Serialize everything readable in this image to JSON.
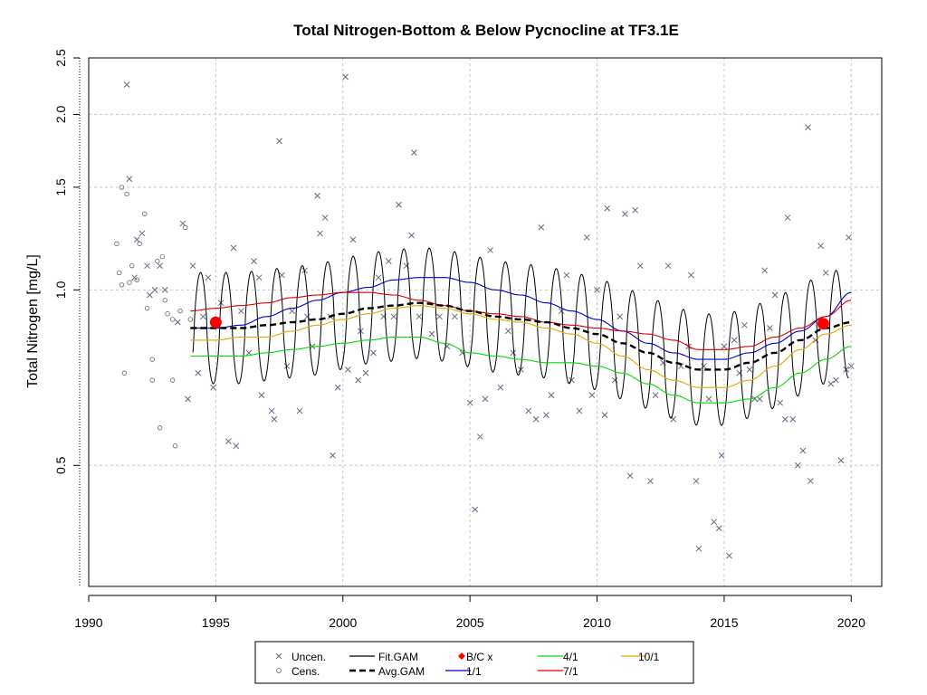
{
  "chart_data": {
    "type": "line",
    "title": "Total Nitrogen-Bottom & Below Pycnocline at TF3.1E",
    "xlabel": "",
    "ylabel": "Total Nitrogen [mg/L]",
    "y_scale": "log",
    "xlim": [
      1990,
      2021.2
    ],
    "ylim": [
      0.31,
      2.5
    ],
    "xticks": [
      1990,
      1995,
      2000,
      2005,
      2010,
      2015,
      2020
    ],
    "yticks": [
      0.5,
      1.0,
      1.5,
      2.0,
      2.5
    ],
    "ytick_labels": [
      "0.5",
      "1.0",
      "1.5",
      "2.0",
      "2.5"
    ],
    "grid": true,
    "legend_position": "bottom-center",
    "legend": [
      {
        "label": "Uncen.",
        "kind": "x-marker",
        "color": "#666688"
      },
      {
        "label": "Cens.",
        "kind": "o-marker",
        "color": "#666666"
      },
      {
        "label": "Fit.GAM",
        "kind": "line",
        "color": "#000000"
      },
      {
        "label": "Avg.GAM",
        "kind": "dashed-line",
        "color": "#000000"
      },
      {
        "label": "B/C x",
        "kind": "diamond",
        "color": "#ff0000"
      },
      {
        "label": "1/1",
        "kind": "line",
        "color": "#0000cc"
      },
      {
        "label": "4/1",
        "kind": "line",
        "color": "#00dd00"
      },
      {
        "label": "7/1",
        "kind": "line",
        "color": "#dd0000"
      },
      {
        "label": "10/1",
        "kind": "line",
        "color": "#e6a800"
      }
    ],
    "colors": {
      "uncen": "#666688",
      "cens": "#666666",
      "fit_gam": "#000000",
      "avg_gam": "#000000",
      "bc": "#ff0000",
      "d1_1": "#0000cc",
      "d4_1": "#00dd00",
      "d7_1": "#dd0000",
      "d10_1": "#e6a800"
    },
    "series": [
      {
        "name": "Avg.GAM",
        "x": [
          1994,
          1995,
          1996,
          1997,
          1998,
          1999,
          2000,
          2001,
          2002,
          2003,
          2004,
          2005,
          2006,
          2007,
          2008,
          2009,
          2010,
          2011,
          2012,
          2013,
          2014,
          2015,
          2016,
          2017,
          2018,
          2019,
          2020
        ],
        "y": [
          0.86,
          0.86,
          0.86,
          0.87,
          0.88,
          0.89,
          0.91,
          0.93,
          0.94,
          0.95,
          0.94,
          0.92,
          0.9,
          0.89,
          0.88,
          0.86,
          0.84,
          0.81,
          0.78,
          0.75,
          0.73,
          0.73,
          0.75,
          0.78,
          0.82,
          0.86,
          0.88
        ]
      },
      {
        "name": "1/1",
        "x": [
          1994,
          1995,
          1996,
          1997,
          1998,
          1999,
          2000,
          2001,
          2002,
          2003,
          2004,
          2005,
          2006,
          2007,
          2008,
          2009,
          2010,
          2011,
          2012,
          2013,
          2014,
          2015,
          2016,
          2017,
          2018,
          2019,
          2020
        ],
        "y": [
          0.86,
          0.86,
          0.87,
          0.9,
          0.93,
          0.96,
          0.99,
          1.01,
          1.04,
          1.05,
          1.05,
          1.03,
          1.0,
          0.98,
          0.95,
          0.92,
          0.89,
          0.85,
          0.81,
          0.78,
          0.76,
          0.76,
          0.78,
          0.81,
          0.85,
          0.9,
          0.99
        ]
      },
      {
        "name": "4/1",
        "x": [
          1994,
          1995,
          1996,
          1997,
          1998,
          1999,
          2000,
          2001,
          2002,
          2003,
          2004,
          2005,
          2006,
          2007,
          2008,
          2009,
          2010,
          2011,
          2012,
          2013,
          2014,
          2015,
          2016,
          2017,
          2018,
          2019,
          2020
        ],
        "y": [
          0.77,
          0.77,
          0.77,
          0.78,
          0.79,
          0.8,
          0.81,
          0.82,
          0.83,
          0.83,
          0.81,
          0.78,
          0.77,
          0.76,
          0.75,
          0.75,
          0.74,
          0.72,
          0.69,
          0.66,
          0.64,
          0.64,
          0.65,
          0.68,
          0.72,
          0.76,
          0.8
        ]
      },
      {
        "name": "7/1",
        "x": [
          1994,
          1995,
          1996,
          1997,
          1998,
          1999,
          2000,
          2001,
          2002,
          2003,
          2004,
          2005,
          2006,
          2007,
          2008,
          2009,
          2010,
          2011,
          2012,
          2013,
          2014,
          2015,
          2016,
          2017,
          2018,
          2019,
          2020
        ],
        "y": [
          0.92,
          0.93,
          0.94,
          0.95,
          0.97,
          0.98,
          0.99,
          0.99,
          0.98,
          0.96,
          0.94,
          0.92,
          0.91,
          0.9,
          0.88,
          0.87,
          0.86,
          0.85,
          0.84,
          0.82,
          0.79,
          0.79,
          0.8,
          0.83,
          0.86,
          0.9,
          0.96
        ]
      },
      {
        "name": "10/1",
        "x": [
          1994,
          1995,
          1996,
          1997,
          1998,
          1999,
          2000,
          2001,
          2002,
          2003,
          2004,
          2005,
          2006,
          2007,
          2008,
          2009,
          2010,
          2011,
          2012,
          2013,
          2014,
          2015,
          2016,
          2017,
          2018,
          2019,
          2020
        ],
        "y": [
          0.82,
          0.82,
          0.83,
          0.83,
          0.85,
          0.87,
          0.89,
          0.91,
          0.93,
          0.94,
          0.93,
          0.91,
          0.89,
          0.88,
          0.86,
          0.84,
          0.81,
          0.77,
          0.73,
          0.7,
          0.68,
          0.68,
          0.7,
          0.74,
          0.79,
          0.84,
          0.87
        ]
      }
    ],
    "fit_gam": {
      "name": "Fit.GAM",
      "x_start": 1994.1,
      "x_end": 2019.9,
      "amplitude": 0.22,
      "phase": 0.15,
      "mean_series": "Avg.GAM"
    },
    "bc_points": [
      {
        "x": 1995.0,
        "y": 0.88
      },
      {
        "x": 2018.9,
        "y": 0.875
      }
    ],
    "uncensored": [
      [
        1991.5,
        2.25
      ],
      [
        1991.6,
        1.55
      ],
      [
        1991.8,
        1.05
      ],
      [
        1991.9,
        1.22
      ],
      [
        1992.1,
        1.25
      ],
      [
        1992.3,
        1.1
      ],
      [
        1992.4,
        0.98
      ],
      [
        1992.6,
        1.0
      ],
      [
        1992.8,
        1.1
      ],
      [
        1993.0,
        1.0
      ],
      [
        1993.5,
        0.88
      ],
      [
        1993.7,
        1.3
      ],
      [
        1993.9,
        0.65
      ],
      [
        1994.1,
        1.1
      ],
      [
        1994.3,
        0.72
      ],
      [
        1994.5,
        0.9
      ],
      [
        1994.7,
        1.05
      ],
      [
        1994.9,
        0.68
      ],
      [
        1995.2,
        0.95
      ],
      [
        1995.5,
        0.55
      ],
      [
        1995.7,
        1.18
      ],
      [
        1995.8,
        0.54
      ],
      [
        1996.0,
        0.92
      ],
      [
        1996.3,
        0.78
      ],
      [
        1996.5,
        1.12
      ],
      [
        1996.7,
        1.05
      ],
      [
        1996.8,
        0.66
      ],
      [
        1997.2,
        0.62
      ],
      [
        1997.3,
        0.6
      ],
      [
        1997.5,
        1.8
      ],
      [
        1997.6,
        1.06
      ],
      [
        1997.8,
        0.74
      ],
      [
        1998.0,
        0.92
      ],
      [
        1998.3,
        0.62
      ],
      [
        1998.5,
        1.08
      ],
      [
        1998.6,
        0.9
      ],
      [
        1998.8,
        0.8
      ],
      [
        1999.0,
        1.45
      ],
      [
        1999.1,
        1.25
      ],
      [
        1999.3,
        1.33
      ],
      [
        1999.5,
        0.9
      ],
      [
        1999.6,
        0.52
      ],
      [
        1999.8,
        0.68
      ],
      [
        2000.1,
        2.32
      ],
      [
        2000.2,
        0.73
      ],
      [
        2000.4,
        1.22
      ],
      [
        2000.6,
        0.7
      ],
      [
        2000.7,
        0.85
      ],
      [
        2000.9,
        0.72
      ],
      [
        2001.2,
        0.78
      ],
      [
        2001.4,
        1.05
      ],
      [
        2001.6,
        0.9
      ],
      [
        2001.8,
        1.12
      ],
      [
        2002.0,
        0.9
      ],
      [
        2002.2,
        1.4
      ],
      [
        2002.5,
        1.1
      ],
      [
        2002.7,
        1.24
      ],
      [
        2002.8,
        1.72
      ],
      [
        2003.0,
        0.9
      ],
      [
        2003.5,
        0.84
      ],
      [
        2003.8,
        0.9
      ],
      [
        2004.1,
        0.8
      ],
      [
        2004.4,
        0.9
      ],
      [
        2004.7,
        0.78
      ],
      [
        2005.0,
        0.64
      ],
      [
        2005.2,
        0.42
      ],
      [
        2005.4,
        0.56
      ],
      [
        2005.6,
        0.65
      ],
      [
        2005.8,
        1.17
      ],
      [
        2006.2,
        0.68
      ],
      [
        2006.5,
        0.85
      ],
      [
        2006.7,
        0.78
      ],
      [
        2007.0,
        0.73
      ],
      [
        2007.3,
        0.62
      ],
      [
        2007.6,
        0.6
      ],
      [
        2007.8,
        1.28
      ],
      [
        2008.0,
        0.61
      ],
      [
        2008.2,
        0.66
      ],
      [
        2008.6,
        0.92
      ],
      [
        2008.8,
        1.06
      ],
      [
        2009.0,
        0.7
      ],
      [
        2009.3,
        0.62
      ],
      [
        2009.6,
        1.23
      ],
      [
        2009.8,
        0.66
      ],
      [
        2010.0,
        1.0
      ],
      [
        2010.3,
        0.61
      ],
      [
        2010.4,
        1.38
      ],
      [
        2010.7,
        0.7
      ],
      [
        2010.9,
        0.9
      ],
      [
        2011.1,
        1.35
      ],
      [
        2011.3,
        0.48
      ],
      [
        2011.5,
        1.37
      ],
      [
        2011.7,
        1.1
      ],
      [
        2012.1,
        0.47
      ],
      [
        2012.3,
        0.66
      ],
      [
        2012.6,
        0.75
      ],
      [
        2012.8,
        1.1
      ],
      [
        2013.0,
        0.6
      ],
      [
        2013.3,
        0.74
      ],
      [
        2013.6,
        0.8
      ],
      [
        2013.7,
        1.06
      ],
      [
        2013.9,
        0.47
      ],
      [
        2014.0,
        0.36
      ],
      [
        2014.2,
        0.74
      ],
      [
        2014.4,
        0.65
      ],
      [
        2014.6,
        0.4
      ],
      [
        2014.8,
        0.39
      ],
      [
        2014.9,
        0.52
      ],
      [
        2015.0,
        0.8
      ],
      [
        2015.2,
        0.35
      ],
      [
        2015.4,
        0.82
      ],
      [
        2015.6,
        0.72
      ],
      [
        2015.8,
        0.87
      ],
      [
        2016.0,
        0.73
      ],
      [
        2016.2,
        0.65
      ],
      [
        2016.4,
        0.65
      ],
      [
        2016.6,
        1.08
      ],
      [
        2016.8,
        0.86
      ],
      [
        2017.0,
        0.98
      ],
      [
        2017.2,
        0.64
      ],
      [
        2017.4,
        0.6
      ],
      [
        2017.5,
        1.33
      ],
      [
        2017.7,
        0.6
      ],
      [
        2017.9,
        0.5
      ],
      [
        2018.1,
        0.53
      ],
      [
        2018.3,
        1.9
      ],
      [
        2018.4,
        0.47
      ],
      [
        2018.6,
        0.82
      ],
      [
        2018.8,
        1.19
      ],
      [
        2019.0,
        1.07
      ],
      [
        2019.2,
        0.69
      ],
      [
        2019.4,
        0.7
      ],
      [
        2019.6,
        0.51
      ],
      [
        2019.8,
        0.73
      ],
      [
        2019.9,
        1.23
      ],
      [
        2020.0,
        0.74
      ]
    ],
    "censored": [
      [
        1991.1,
        1.2
      ],
      [
        1991.2,
        1.07
      ],
      [
        1991.3,
        1.5
      ],
      [
        1991.4,
        0.72
      ],
      [
        1991.5,
        1.46
      ],
      [
        1991.6,
        1.03
      ],
      [
        1991.7,
        1.1
      ],
      [
        1991.9,
        1.04
      ],
      [
        1992.0,
        1.2
      ],
      [
        1992.2,
        1.35
      ],
      [
        1992.3,
        0.93
      ],
      [
        1992.5,
        0.7
      ],
      [
        1992.7,
        1.12
      ],
      [
        1992.8,
        0.58
      ],
      [
        1992.9,
        1.14
      ],
      [
        1993.1,
        0.91
      ],
      [
        1993.3,
        0.89
      ],
      [
        1993.4,
        0.54
      ],
      [
        1993.6,
        0.92
      ],
      [
        1993.8,
        1.28
      ],
      [
        1994.0,
        0.89
      ],
      [
        1991.3,
        1.02
      ],
      [
        1992.5,
        0.76
      ],
      [
        1993.0,
        0.96
      ],
      [
        1993.3,
        0.7
      ]
    ]
  }
}
